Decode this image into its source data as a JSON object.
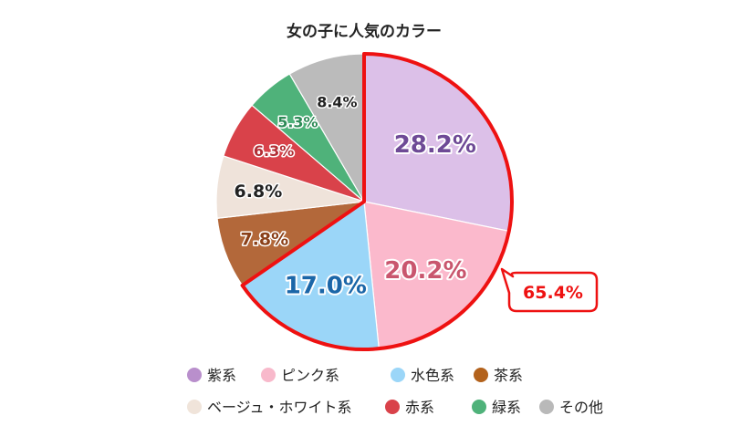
{
  "chart_data": {
    "type": "pie",
    "title": "女の子に人気のカラー",
    "categories": [
      "紫系",
      "ピンク系",
      "水色系",
      "茶系",
      "ベージュ・ホワイト系",
      "赤系",
      "緑系",
      "その他"
    ],
    "values": [
      28.2,
      20.2,
      17.0,
      7.8,
      6.8,
      6.3,
      5.3,
      8.4
    ],
    "value_labels": [
      "28.2%",
      "20.2%",
      "17.0%",
      "7.8%",
      "6.8%",
      "6.3%",
      "5.3%",
      "8.4%"
    ],
    "colors": [
      "#dcc0e8",
      "#fbb9cc",
      "#9bd6f8",
      "#b3683a",
      "#efe3da",
      "#d9424a",
      "#4fb27a",
      "#bbbbbb"
    ],
    "legend_colors": [
      "#b98fcc",
      "#f8b9cb",
      "#9bd6f8",
      "#b3621c",
      "#f0e4da",
      "#d9424a",
      "#4fb27a",
      "#b9b9b9"
    ],
    "label_colors": [
      "#6e4a96",
      "#c9566e",
      "#1b66a8",
      "#8a3f18",
      "#222222",
      "#b32e35",
      "#2e8b57",
      "#222222"
    ],
    "label_sizes": [
      "large",
      "large",
      "large",
      "medium",
      "medium",
      "small",
      "small",
      "small"
    ],
    "legend_position": "bottom",
    "highlight": {
      "slices": [
        0,
        1,
        2
      ],
      "label": "65.4%",
      "color": "#ee1111"
    }
  }
}
